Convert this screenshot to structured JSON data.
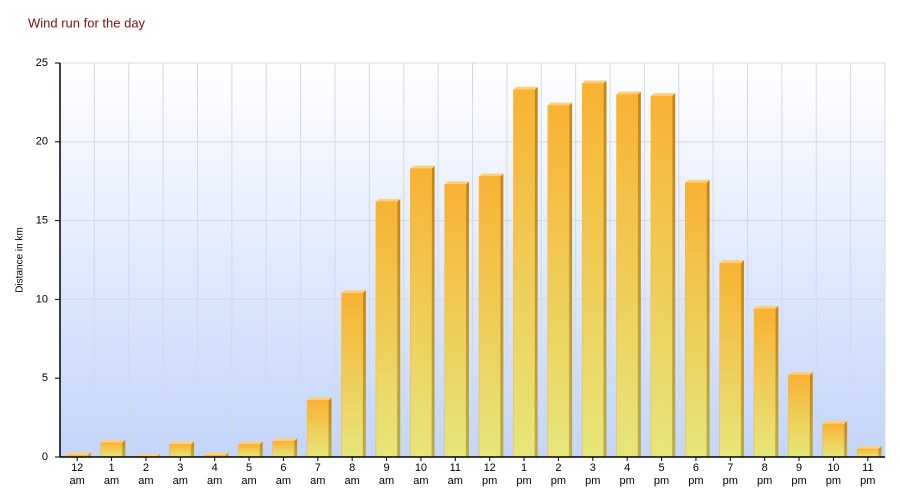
{
  "chart_data": {
    "type": "bar",
    "title": "Wind run for the day",
    "y_label": "Distance in km",
    "categories": [
      [
        "12",
        "am"
      ],
      [
        "1",
        "am"
      ],
      [
        "2",
        "am"
      ],
      [
        "3",
        "am"
      ],
      [
        "4",
        "am"
      ],
      [
        "5",
        "am"
      ],
      [
        "6",
        "am"
      ],
      [
        "7",
        "am"
      ],
      [
        "8",
        "am"
      ],
      [
        "9",
        "am"
      ],
      [
        "10",
        "am"
      ],
      [
        "11",
        "am"
      ],
      [
        "12",
        "pm"
      ],
      [
        "1",
        "pm"
      ],
      [
        "2",
        "pm"
      ],
      [
        "3",
        "pm"
      ],
      [
        "4",
        "pm"
      ],
      [
        "5",
        "pm"
      ],
      [
        "6",
        "pm"
      ],
      [
        "7",
        "pm"
      ],
      [
        "8",
        "pm"
      ],
      [
        "9",
        "pm"
      ],
      [
        "10",
        "pm"
      ],
      [
        "11",
        "pm"
      ]
    ],
    "values": [
      0.1,
      0.9,
      0,
      0.8,
      0.1,
      0.8,
      1.0,
      3.6,
      10.4,
      16.2,
      18.3,
      17.3,
      17.8,
      23.3,
      22.3,
      23.7,
      23.0,
      22.9,
      17.4,
      12.3,
      9.4,
      5.2,
      2.1,
      0.5
    ],
    "color": "#f9b233",
    "ylim": [
      0,
      25
    ],
    "yticks": [
      0,
      5,
      10,
      15,
      20,
      25
    ],
    "grid": true
  }
}
